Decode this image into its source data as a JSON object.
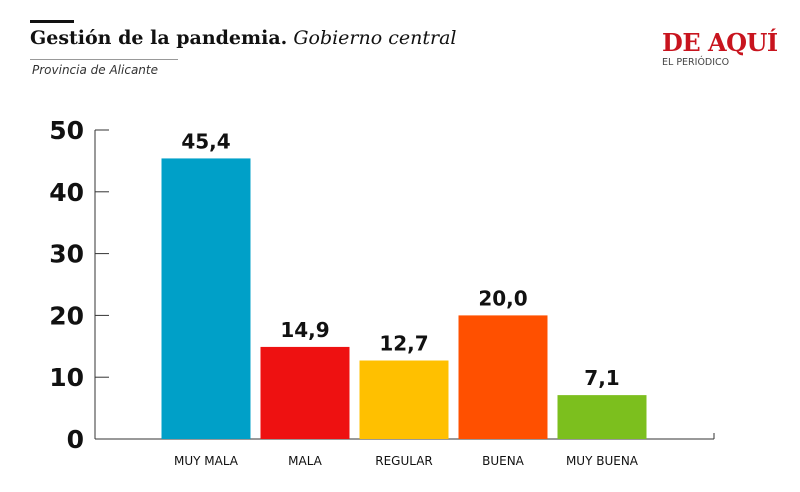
{
  "header": {
    "title_bold": "Gestión de la pandemia.",
    "title_italic": "Gobierno central",
    "subtitle": "Provincia de Alicante"
  },
  "logo": {
    "main": "DE AQUÍ",
    "sub": "EL PERIÓDICO"
  },
  "colors": {
    "logo_red": "#c8141e",
    "bars": [
      "#00a0c8",
      "#ee1111",
      "#ffc000",
      "#ff5000",
      "#7cbf1e"
    ]
  },
  "chart_data": {
    "type": "bar",
    "categories": [
      "MUY MALA",
      "MALA",
      "REGULAR",
      "BUENA",
      "MUY BUENA"
    ],
    "values": [
      45.4,
      14.9,
      12.7,
      20.0,
      7.1
    ],
    "value_labels": [
      "45,4",
      "14,9",
      "12,7",
      "20,0",
      "7,1"
    ],
    "yticks": [
      0,
      10,
      20,
      30,
      40,
      50
    ],
    "ylim": [
      0,
      50
    ],
    "grid": false,
    "legend": "none"
  }
}
